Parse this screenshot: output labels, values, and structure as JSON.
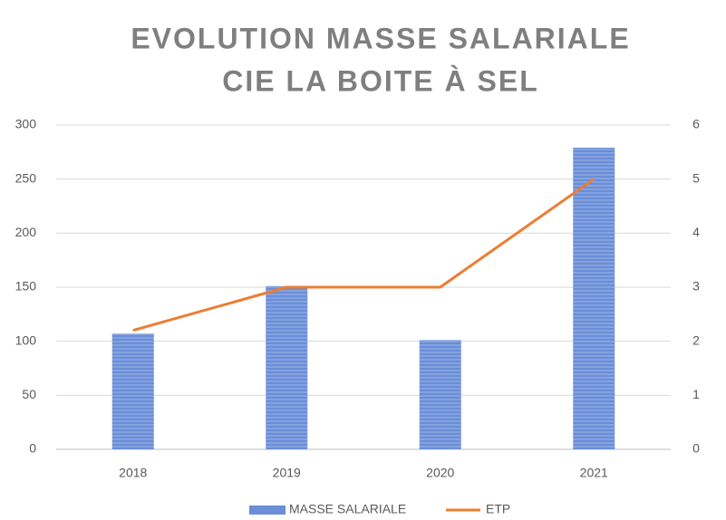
{
  "chart_data": {
    "type": "bar",
    "title": [
      "EVOLUTION MASSE SALARIALE",
      "CIE LA BOITE À SEL"
    ],
    "categories": [
      "2018",
      "2019",
      "2020",
      "2021"
    ],
    "series": [
      {
        "name": "MASSE SALARIALE",
        "type": "bar",
        "color": "#6a8ed8",
        "values": [
          107,
          151,
          101,
          279
        ]
      },
      {
        "name": "ETP",
        "type": "line",
        "axis": "y2",
        "color": "#ed7d31",
        "values": [
          2.2,
          3,
          3,
          5
        ]
      }
    ],
    "ylim": [
      0,
      300
    ],
    "yticks": [
      0,
      50,
      100,
      150,
      200,
      250,
      300
    ],
    "y2lim": [
      0,
      6
    ],
    "y2ticks": [
      0,
      1,
      2,
      3,
      4,
      5,
      6
    ],
    "grid": true,
    "legend": "bottom"
  }
}
